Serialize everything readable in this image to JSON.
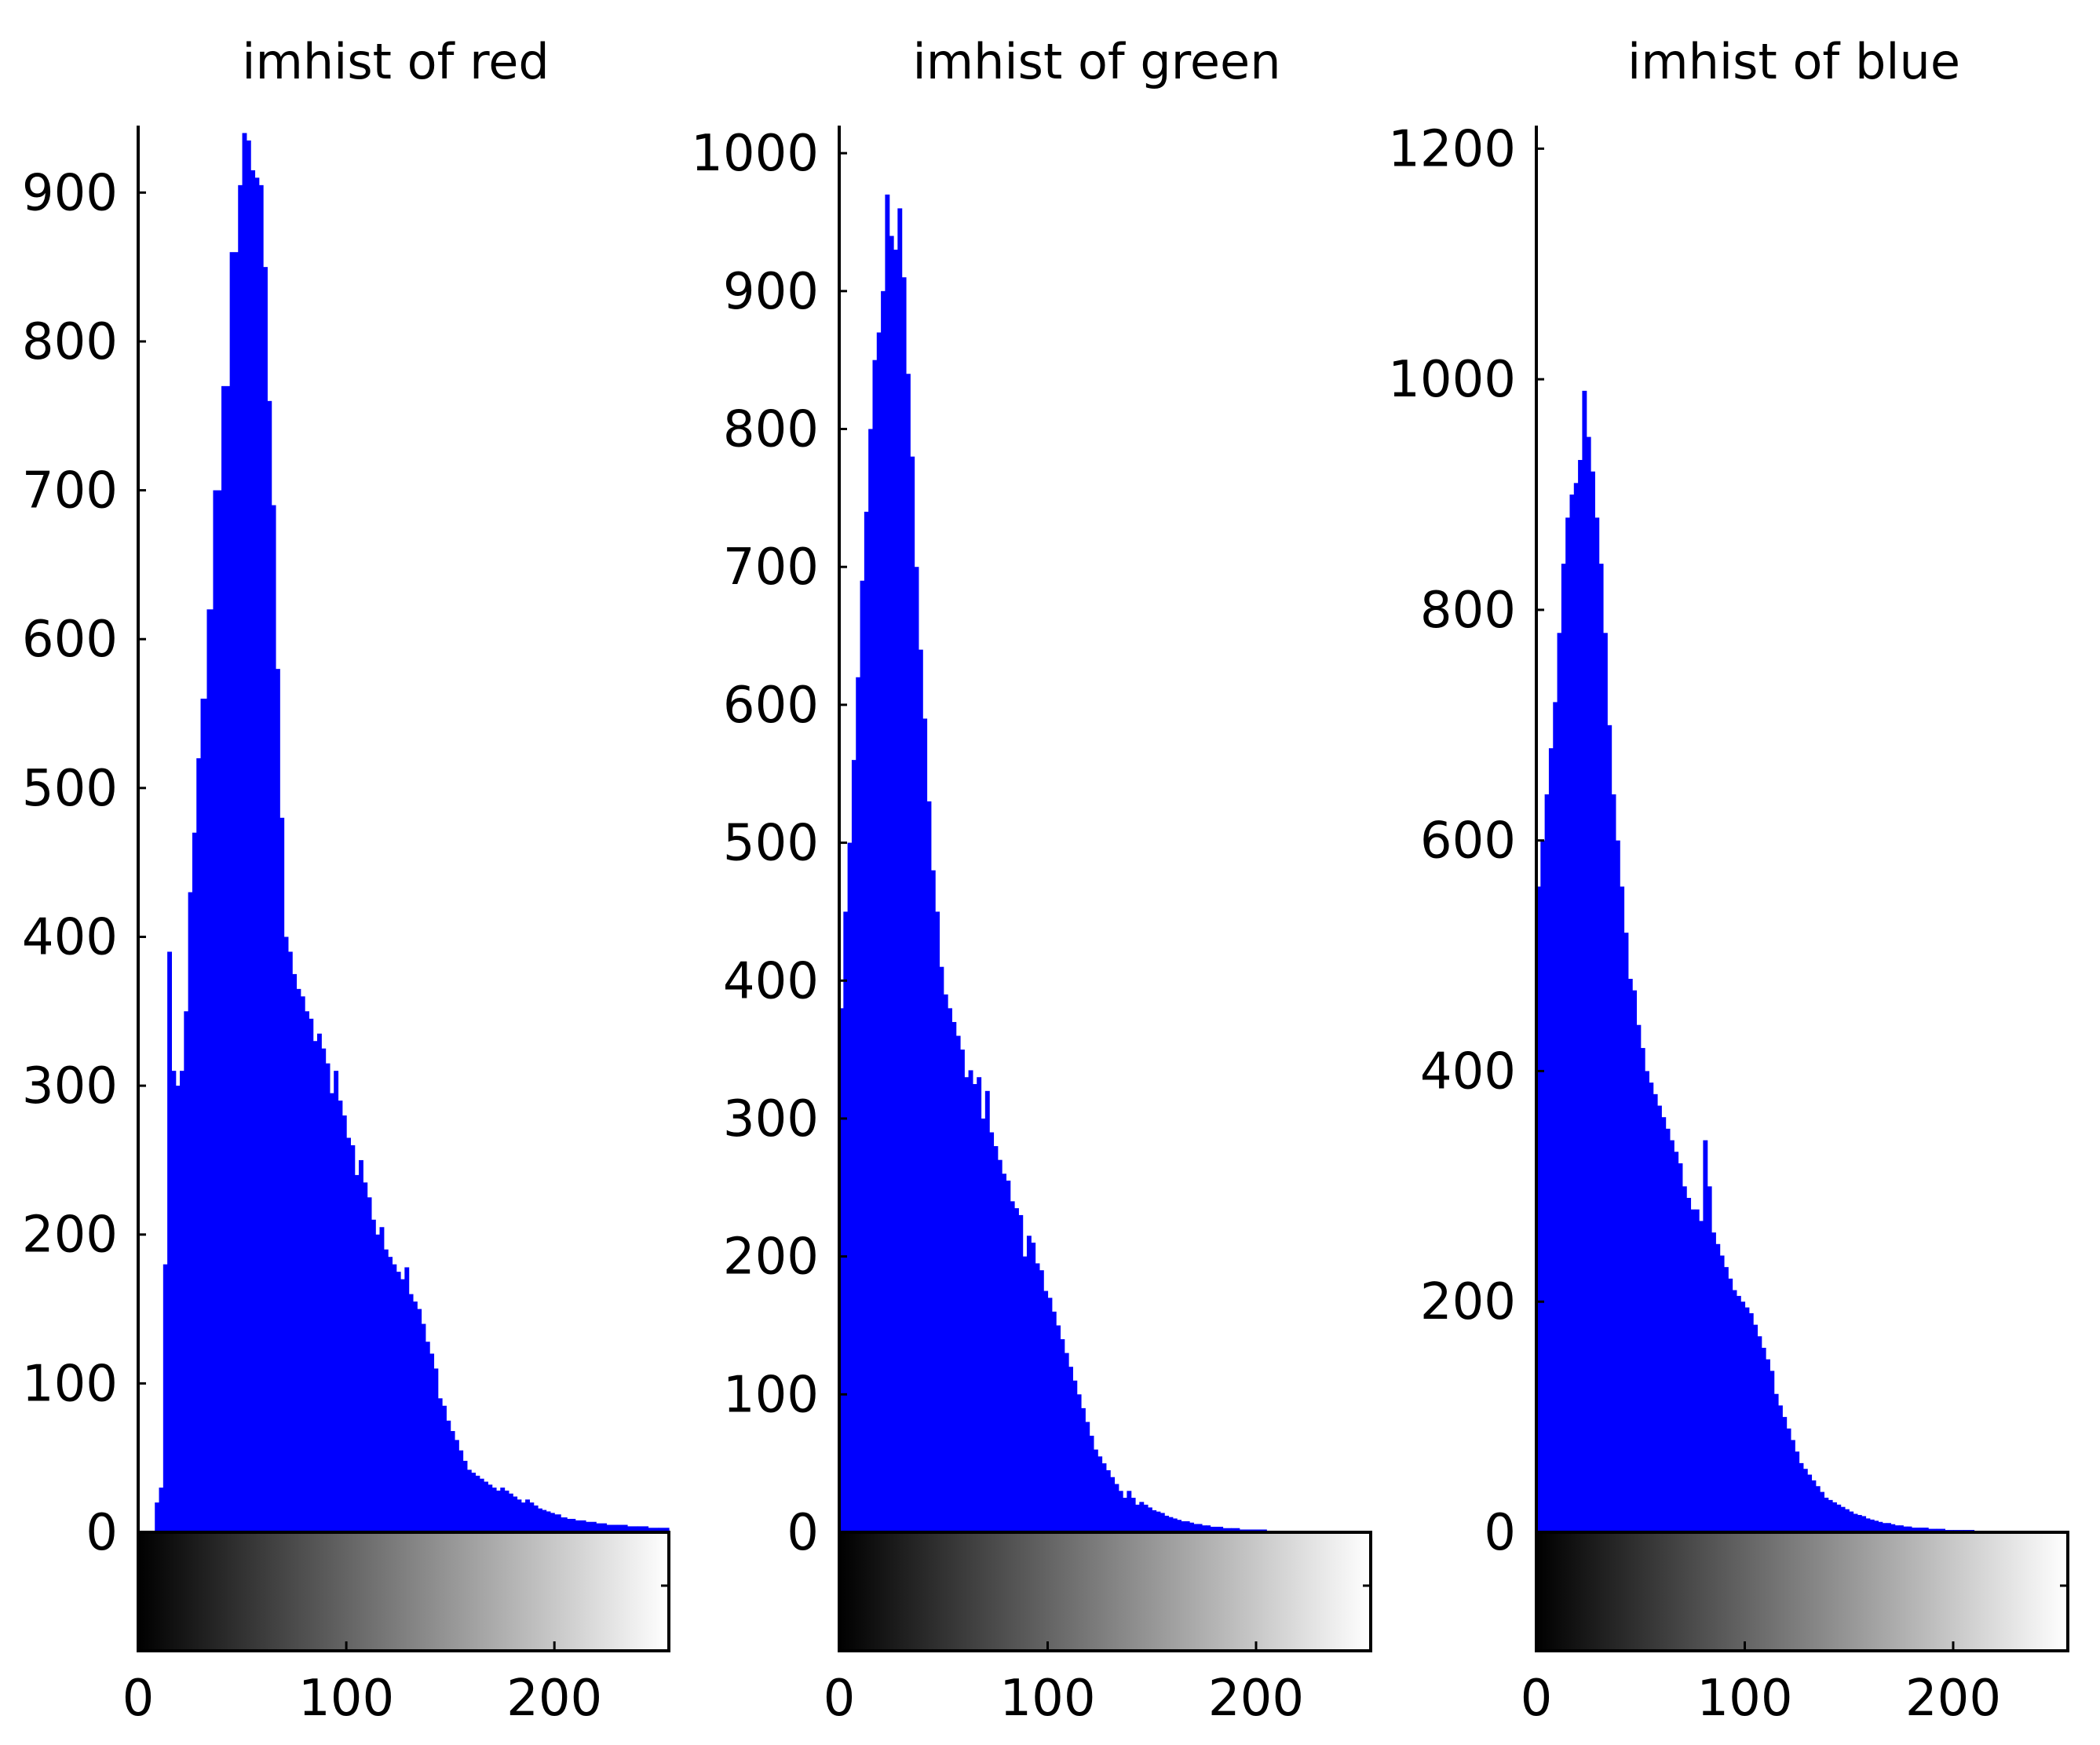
{
  "chart_data": [
    {
      "type": "bar",
      "title": "imhist of red",
      "xlabel": "",
      "ylabel": "",
      "xlim": [
        0,
        255
      ],
      "ylim": [
        0,
        945
      ],
      "xticks": [
        0,
        100,
        200
      ],
      "yticks": [
        0,
        100,
        200,
        300,
        400,
        500,
        600,
        700,
        800,
        900
      ],
      "bar_color": "#0000ff",
      "colorbar": "grayscale",
      "grid": false,
      "legend": "none",
      "x": [
        0,
        5,
        8,
        10,
        12,
        14,
        16,
        18,
        20,
        22,
        24,
        26,
        28,
        30,
        33,
        36,
        40,
        44,
        48,
        50,
        52,
        54,
        56,
        58,
        60,
        62,
        64,
        66,
        68,
        70,
        72,
        74,
        76,
        78,
        80,
        82,
        84,
        86,
        88,
        90,
        92,
        94,
        96,
        98,
        100,
        102,
        104,
        106,
        108,
        110,
        112,
        114,
        116,
        118,
        120,
        122,
        124,
        126,
        128,
        130,
        132,
        134,
        136,
        138,
        140,
        142,
        144,
        146,
        148,
        150,
        152,
        154,
        156,
        158,
        160,
        162,
        164,
        166,
        168,
        170,
        172,
        174,
        176,
        178,
        180,
        182,
        184,
        186,
        188,
        190,
        192,
        194,
        196,
        198,
        200,
        203,
        206,
        210,
        215,
        220,
        225,
        230,
        235,
        240,
        245,
        250,
        255
      ],
      "values": [
        0,
        0,
        20,
        30,
        180,
        390,
        310,
        300,
        310,
        350,
        430,
        470,
        520,
        560,
        620,
        700,
        770,
        860,
        905,
        940,
        935,
        915,
        910,
        905,
        850,
        760,
        690,
        580,
        480,
        400,
        390,
        375,
        365,
        360,
        350,
        345,
        330,
        335,
        325,
        315,
        295,
        310,
        290,
        280,
        265,
        260,
        240,
        250,
        235,
        225,
        210,
        200,
        205,
        190,
        185,
        180,
        175,
        170,
        178,
        160,
        155,
        150,
        140,
        128,
        120,
        110,
        90,
        85,
        75,
        68,
        62,
        55,
        48,
        42,
        40,
        38,
        36,
        34,
        32,
        30,
        28,
        30,
        28,
        26,
        24,
        22,
        20,
        22,
        20,
        18,
        16,
        15,
        14,
        13,
        12,
        10,
        9,
        8,
        7,
        6,
        5,
        5,
        4,
        4,
        3,
        3,
        2
      ]
    },
    {
      "type": "bar",
      "title": "imhist of green",
      "xlabel": "",
      "ylabel": "",
      "xlim": [
        0,
        255
      ],
      "ylim": [
        0,
        1020
      ],
      "xticks": [
        0,
        100,
        200
      ],
      "yticks": [
        0,
        100,
        200,
        300,
        400,
        500,
        600,
        700,
        800,
        900,
        1000
      ],
      "bar_color": "#0000ff",
      "colorbar": "grayscale",
      "grid": false,
      "legend": "none",
      "x": [
        0,
        2,
        4,
        6,
        8,
        10,
        12,
        14,
        16,
        18,
        20,
        22,
        24,
        26,
        28,
        30,
        32,
        34,
        36,
        38,
        40,
        42,
        44,
        46,
        48,
        50,
        52,
        54,
        56,
        58,
        60,
        62,
        64,
        66,
        68,
        70,
        72,
        74,
        76,
        78,
        80,
        82,
        84,
        86,
        88,
        90,
        92,
        94,
        96,
        98,
        100,
        102,
        104,
        106,
        108,
        110,
        112,
        114,
        116,
        118,
        120,
        122,
        124,
        126,
        128,
        130,
        132,
        134,
        136,
        138,
        140,
        142,
        144,
        146,
        148,
        150,
        152,
        154,
        156,
        158,
        160,
        162,
        164,
        166,
        168,
        170,
        172,
        174,
        176,
        178,
        180,
        184,
        188,
        192,
        196,
        200,
        205,
        210,
        215,
        220,
        225,
        230,
        235,
        240,
        245,
        250,
        255
      ],
      "values": [
        380,
        450,
        500,
        560,
        620,
        690,
        740,
        800,
        850,
        870,
        900,
        970,
        940,
        930,
        960,
        910,
        840,
        780,
        700,
        640,
        590,
        530,
        480,
        450,
        410,
        390,
        380,
        370,
        360,
        350,
        330,
        335,
        325,
        330,
        300,
        320,
        290,
        280,
        270,
        260,
        255,
        240,
        235,
        230,
        200,
        215,
        210,
        195,
        190,
        175,
        170,
        160,
        150,
        140,
        130,
        120,
        110,
        100,
        90,
        80,
        70,
        60,
        55,
        50,
        45,
        40,
        35,
        30,
        25,
        30,
        25,
        20,
        22,
        20,
        18,
        16,
        15,
        14,
        12,
        11,
        10,
        9,
        8,
        8,
        7,
        6,
        6,
        5,
        5,
        4,
        4,
        3,
        3,
        2,
        2,
        2,
        1,
        1,
        1,
        0,
        0,
        0,
        0,
        0,
        0,
        0,
        0
      ]
    },
    {
      "type": "bar",
      "title": "imhist of blue",
      "xlabel": "",
      "ylabel": "",
      "xlim": [
        0,
        255
      ],
      "ylim": [
        0,
        1220
      ],
      "xticks": [
        0,
        100,
        200
      ],
      "yticks": [
        0,
        200,
        400,
        600,
        800,
        1000,
        1200
      ],
      "bar_color": "#0000ff",
      "colorbar": "grayscale",
      "grid": false,
      "legend": "none",
      "x": [
        0,
        2,
        4,
        6,
        8,
        10,
        12,
        14,
        16,
        18,
        20,
        22,
        24,
        26,
        28,
        30,
        32,
        34,
        36,
        38,
        40,
        42,
        44,
        46,
        48,
        50,
        52,
        54,
        56,
        58,
        60,
        62,
        64,
        66,
        68,
        70,
        72,
        74,
        76,
        78,
        80,
        82,
        84,
        86,
        88,
        90,
        92,
        94,
        96,
        98,
        100,
        102,
        104,
        106,
        108,
        110,
        112,
        114,
        116,
        118,
        120,
        122,
        124,
        126,
        128,
        130,
        132,
        134,
        136,
        138,
        140,
        142,
        144,
        146,
        148,
        150,
        152,
        154,
        156,
        158,
        160,
        162,
        164,
        166,
        168,
        170,
        172,
        174,
        176,
        178,
        180,
        184,
        188,
        192,
        196,
        200,
        205,
        210,
        215,
        220,
        225,
        230,
        235,
        240,
        245,
        250,
        255
      ],
      "values": [
        560,
        600,
        640,
        680,
        720,
        780,
        840,
        880,
        900,
        910,
        930,
        990,
        950,
        920,
        880,
        840,
        780,
        700,
        640,
        600,
        560,
        520,
        480,
        470,
        440,
        420,
        400,
        390,
        380,
        370,
        360,
        350,
        340,
        330,
        320,
        300,
        290,
        280,
        280,
        270,
        340,
        300,
        260,
        250,
        240,
        230,
        220,
        210,
        205,
        200,
        195,
        190,
        180,
        170,
        160,
        150,
        140,
        120,
        110,
        100,
        90,
        80,
        70,
        60,
        55,
        50,
        45,
        40,
        35,
        30,
        28,
        26,
        24,
        22,
        20,
        18,
        16,
        15,
        14,
        12,
        11,
        10,
        9,
        8,
        8,
        7,
        6,
        6,
        5,
        5,
        4,
        4,
        3,
        3,
        2,
        2,
        2,
        1,
        1,
        1,
        0,
        0,
        0,
        0,
        0,
        0,
        0
      ]
    }
  ]
}
